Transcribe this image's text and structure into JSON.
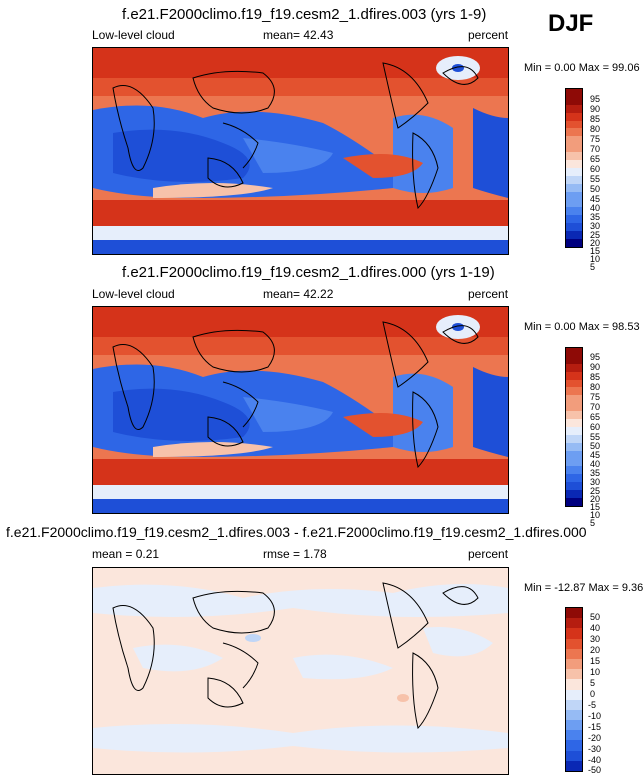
{
  "season": "DJF",
  "colors": {
    "cloud_scale": [
      "#00007f",
      "#0a28b4",
      "#1e4fd7",
      "#2e66e6",
      "#4a82ee",
      "#6d9ef2",
      "#96bbf4",
      "#c0d6f7",
      "#e6eefb",
      "#fbe6dc",
      "#f7c2aa",
      "#f29d7c",
      "#ec7650",
      "#e3522f",
      "#d5331a",
      "#b51d10",
      "#8e0a06"
    ],
    "diff_scale": [
      "#00007f",
      "#0a28b4",
      "#1e4fd7",
      "#2e66e6",
      "#4a82ee",
      "#6d9ef2",
      "#96bbf4",
      "#c0d6f7",
      "#e6eefb",
      "#fbe6dc",
      "#f7c2aa",
      "#f29d7c",
      "#ec7650",
      "#e3522f",
      "#d5331a",
      "#b51d10",
      "#8e0a06"
    ]
  },
  "panels": [
    {
      "title": "f.e21.F2000climo.f19_f19.cesm2_1.dfires.003 (yrs 1-9)",
      "left_label": "Low-level cloud",
      "center_label": "mean=  42.43",
      "right_label": "percent",
      "minmax": "Min =   0.00 Max =  99.06",
      "colorbar_labels": [
        "95",
        "90",
        "85",
        "80",
        "75",
        "70",
        "65",
        "60",
        "55",
        "50",
        "45",
        "40",
        "35",
        "30",
        "25",
        "20",
        "15",
        "10",
        "5"
      ]
    },
    {
      "title": "f.e21.F2000climo.f19_f19.cesm2_1.dfires.000 (yrs 1-19)",
      "left_label": "Low-level cloud",
      "center_label": "mean=  42.22",
      "right_label": "percent",
      "minmax": "Min =   0.00 Max =  98.53",
      "colorbar_labels": [
        "95",
        "90",
        "85",
        "80",
        "75",
        "70",
        "65",
        "60",
        "55",
        "50",
        "45",
        "40",
        "35",
        "30",
        "25",
        "20",
        "15",
        "10",
        "5"
      ]
    },
    {
      "title": "f.e21.F2000climo.f19_f19.cesm2_1.dfires.003 - f.e21.F2000climo.f19_f19.cesm2_1.dfires.000",
      "left_label": "mean =   0.21",
      "center_label": "rmse =   1.78",
      "right_label": "percent",
      "minmax": "Min = -12.87 Max =   9.36",
      "colorbar_labels": [
        "50",
        "40",
        "30",
        "20",
        "15",
        "10",
        "5",
        "0",
        "-5",
        "-10",
        "-15",
        "-20",
        "-30",
        "-40",
        "-50"
      ]
    }
  ]
}
